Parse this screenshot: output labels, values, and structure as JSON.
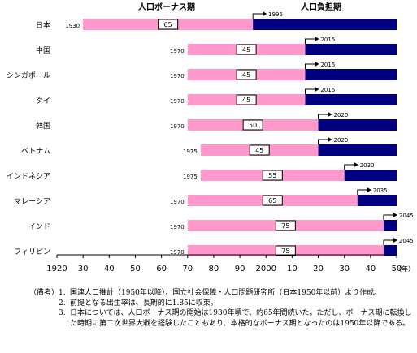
{
  "colors": {
    "bonus": "#ff99cc",
    "burden": "#000080",
    "box_border": "#000000"
  },
  "chart_data": {
    "type": "bar",
    "subtype": "horizontal-range",
    "legend": [
      "人口ボーナス期",
      "人口負担期"
    ],
    "x_ticks": [
      "1920",
      "30",
      "40",
      "50",
      "60",
      "70",
      "80",
      "90",
      "2000",
      "10",
      "20",
      "30",
      "40",
      "50"
    ],
    "x_unit": "（年）",
    "xlim": [
      1920,
      2050
    ],
    "rows": [
      {
        "country": "日本",
        "start": 1930,
        "start_label": "1930",
        "duration": 65,
        "duration_label": "65",
        "transition": 1995,
        "transition_label": "1995"
      },
      {
        "country": "中国",
        "start": 1970,
        "start_label": "1970",
        "duration": 45,
        "duration_label": "45",
        "transition": 2015,
        "transition_label": "2015"
      },
      {
        "country": "シンガポール",
        "start": 1970,
        "start_label": "1970",
        "duration": 45,
        "duration_label": "45",
        "transition": 2015,
        "transition_label": "2015"
      },
      {
        "country": "タイ",
        "start": 1970,
        "start_label": "1970",
        "duration": 45,
        "duration_label": "45",
        "transition": 2015,
        "transition_label": "2015"
      },
      {
        "country": "韓国",
        "start": 1970,
        "start_label": "1970",
        "duration": 50,
        "duration_label": "50",
        "transition": 2020,
        "transition_label": "2020"
      },
      {
        "country": "ベトナム",
        "start": 1975,
        "start_label": "1975",
        "duration": 45,
        "duration_label": "45",
        "transition": 2020,
        "transition_label": "2020"
      },
      {
        "country": "インドネシア",
        "start": 1975,
        "start_label": "1975",
        "duration": 55,
        "duration_label": "55",
        "transition": 2030,
        "transition_label": "2030"
      },
      {
        "country": "マレーシア",
        "start": 1970,
        "start_label": "1970",
        "duration": 65,
        "duration_label": "65",
        "transition": 2035,
        "transition_label": "2035"
      },
      {
        "country": "インド",
        "start": 1970,
        "start_label": "1970",
        "duration": 75,
        "duration_label": "75",
        "transition": 2045,
        "transition_label": "2045"
      },
      {
        "country": "フィリピン",
        "start": 1970,
        "start_label": "1970",
        "duration": 75,
        "duration_label": "75",
        "transition": 2045,
        "transition_label": "2045"
      }
    ]
  },
  "notes": {
    "prefix": "（備考）",
    "items": [
      {
        "num": "1.",
        "text": "国連人口推計（1950年以降）、国立社会保障・人口問題研究所（日本1950年以前）より作成。"
      },
      {
        "num": "2.",
        "text": "前提となる出生率は、長期的に1.85に収束。"
      },
      {
        "num": "3.",
        "text": "日本については、人口ボーナス期の開始は1930年頃で、約65年間続いた。ただし、ボーナス期に転換した時期に第二次世界大戦を経験したこともあり、本格的なボーナス期となったのは1950年以降である。"
      }
    ]
  }
}
